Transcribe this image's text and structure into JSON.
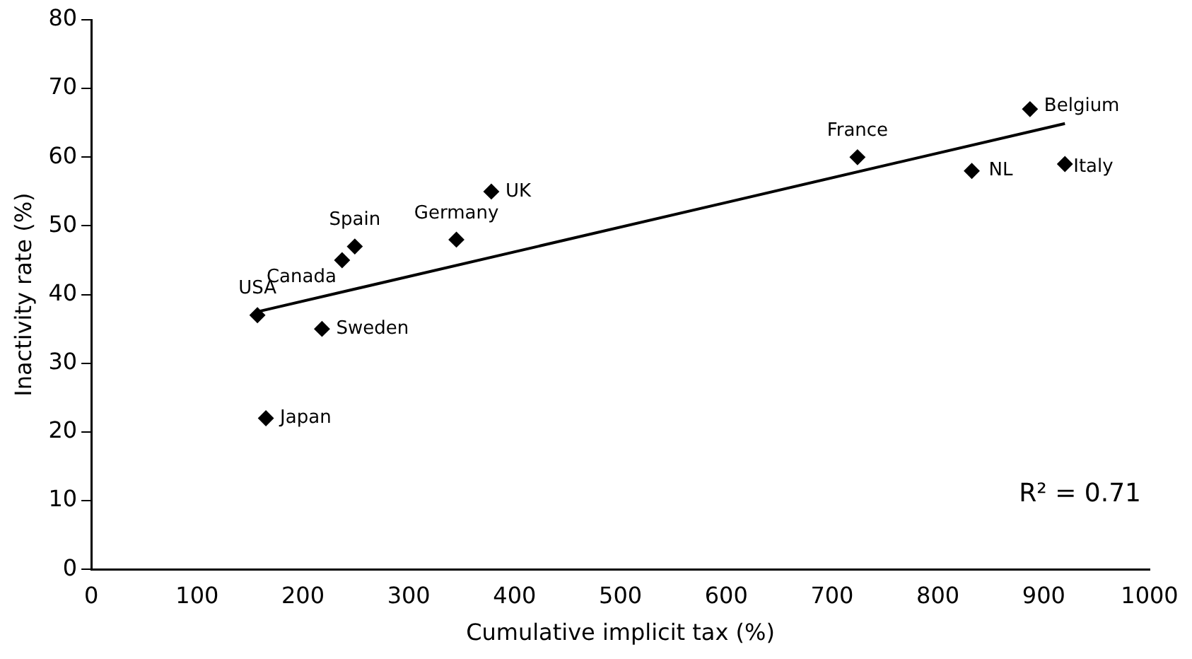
{
  "chart_data": {
    "type": "scatter",
    "xlabel": "Cumulative implicit tax (%)",
    "ylabel": "Inactivity rate (%)",
    "xlim": [
      0,
      1000
    ],
    "xticks": [
      0,
      100,
      200,
      300,
      400,
      500,
      600,
      700,
      800,
      900,
      1000
    ],
    "ylim": [
      0,
      80
    ],
    "yticks": [
      0,
      10,
      20,
      30,
      40,
      50,
      60,
      70,
      80
    ],
    "grid": false,
    "legend": false,
    "marker": "diamond",
    "series": [
      {
        "type": "scatter",
        "color": "#000000",
        "x": [
          157,
          165,
          218,
          237,
          249,
          345,
          378,
          724,
          832,
          887,
          920
        ],
        "values": [
          37,
          22,
          35,
          45,
          47,
          48,
          55,
          60,
          58,
          67,
          59
        ]
      },
      {
        "type": "line",
        "color": "#000000",
        "marker": "none",
        "x": [
          157,
          920
        ],
        "values": [
          37.5,
          64.9
        ]
      }
    ],
    "annotations": [
      {
        "text": "USA",
        "x": 157,
        "y": 37
      },
      {
        "text": "Japan",
        "x": 165,
        "y": 22
      },
      {
        "text": "Sweden",
        "x": 218,
        "y": 35
      },
      {
        "text": "Canada",
        "x": 237,
        "y": 45
      },
      {
        "text": "Spain",
        "x": 249,
        "y": 47
      },
      {
        "text": "Germany",
        "x": 345,
        "y": 48
      },
      {
        "text": "UK",
        "x": 378,
        "y": 55
      },
      {
        "text": "France",
        "x": 724,
        "y": 60
      },
      {
        "text": "NL",
        "x": 832,
        "y": 58
      },
      {
        "text": "Belgium",
        "x": 887,
        "y": 67
      },
      {
        "text": "Italy",
        "x": 920,
        "y": 59
      },
      "R² = 0.71"
    ]
  }
}
